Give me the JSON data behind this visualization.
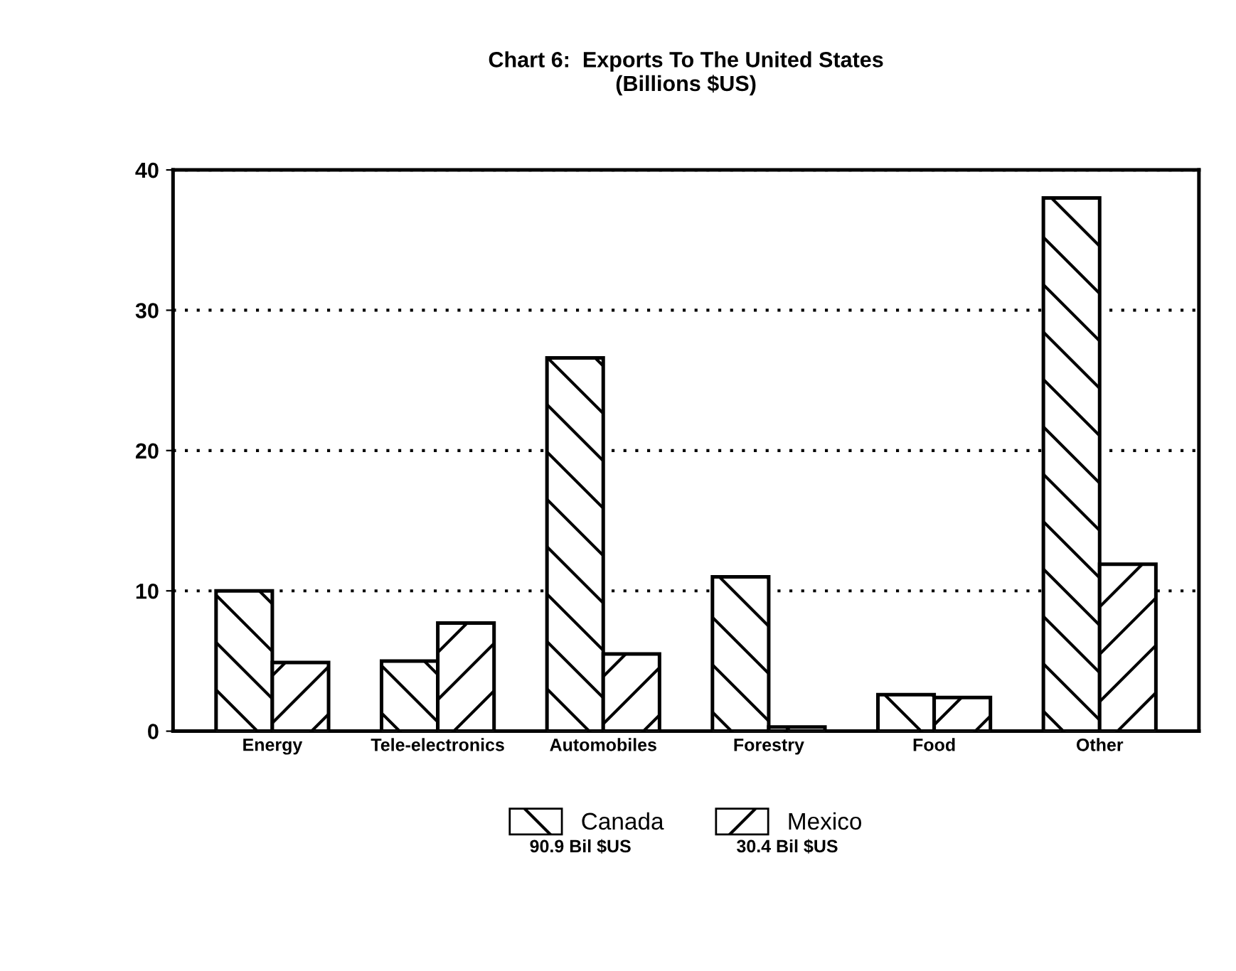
{
  "chart_data": {
    "type": "bar",
    "title": "Chart 6:  Exports To The United States\n(Billions $US)",
    "categories": [
      "Energy",
      "Tele-electronics",
      "Automobiles",
      "Forestry",
      "Food",
      "Other"
    ],
    "series": [
      {
        "name": "Canada",
        "color": "#000000",
        "values": [
          10.0,
          5.0,
          26.6,
          11.0,
          2.6,
          38.0
        ]
      },
      {
        "name": "Mexico",
        "color": "#000000",
        "values": [
          4.9,
          7.7,
          5.5,
          0.3,
          2.4,
          11.9
        ]
      }
    ],
    "ylim": [
      0,
      40
    ],
    "yticks": [
      0,
      10,
      20,
      30,
      40
    ],
    "grid": "y",
    "legend": "bottom",
    "annotations": [
      "90.9 Bil $US",
      "30.4 Bil $US"
    ]
  }
}
